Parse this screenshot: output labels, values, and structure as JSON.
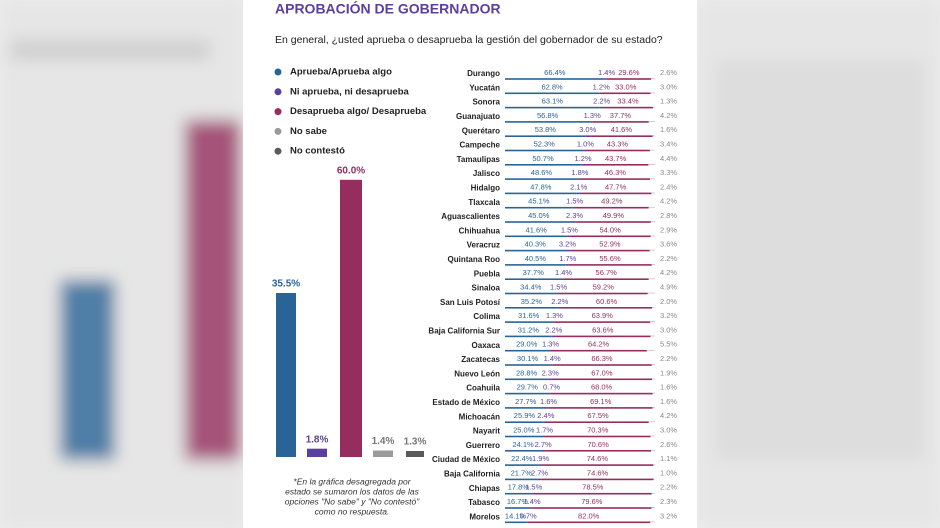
{
  "chart_data": [
    {
      "type": "bar",
      "title": "APROBACIÓN DE GOBERNADOR",
      "subtitle": "En general, ¿usted aprueba o desaprueba la gestión del gobernador de su estado?",
      "categories": [
        "Aprueba/Aprueba algo",
        "Ni aprueba, ni desaprueba",
        "Desaprueba algo/ Desaprueba",
        "No sabe",
        "No contestó"
      ],
      "values": [
        35.5,
        1.8,
        60.0,
        1.4,
        1.3
      ],
      "value_labels": [
        "35.5%",
        "1.8%",
        "60.0%",
        "1.4%",
        "1.3%"
      ],
      "colors": [
        "#2a6496",
        "#5b3f9e",
        "#952d5e",
        "#9a9a9a",
        "#5a5a5a"
      ],
      "note": [
        "*En la gráfica desagregada por",
        "estado se sumaron los datos de las",
        "opciones \"No sabe\" y \"No contestó\"",
        "como no respuesta."
      ]
    },
    {
      "type": "stacked_bar",
      "orientation": "horizontal",
      "categories": [
        "Durango",
        "Yucatán",
        "Sonora",
        "Guanajuato",
        "Querétaro",
        "Campeche",
        "Tamaulipas",
        "Jalisco",
        "Hidalgo",
        "Tlaxcala",
        "Aguascalientes",
        "Chihuahua",
        "Veracruz",
        "Quintana Roo",
        "Puebla",
        "Sinaloa",
        "San Luis Potosí",
        "Colima",
        "Baja California Sur",
        "Oaxaca",
        "Zacatecas",
        "Nuevo León",
        "Coahuila",
        "Estado de México",
        "Michoacán",
        "Nayarit",
        "Guerrero",
        "Ciudad de México",
        "Baja California",
        "Chiapas",
        "Tabasco",
        "Morelos"
      ],
      "series": [
        {
          "color": "#2a6496",
          "values": [
            66.4,
            62.8,
            63.1,
            56.8,
            53.8,
            52.3,
            50.7,
            48.6,
            47.8,
            45.1,
            45.0,
            41.6,
            40.3,
            40.5,
            37.7,
            34.4,
            35.2,
            31.6,
            31.2,
            29.0,
            30.1,
            28.8,
            29.7,
            27.7,
            25.9,
            25.0,
            24.1,
            22.4,
            21.7,
            17.8,
            16.7,
            14.1
          ],
          "value_labels": [
            "66.4%",
            "62.8%",
            "63.1%",
            "56.8%",
            "53.8%",
            "52.3%",
            "50.7%",
            "48.6%",
            "47.8%",
            "45.1%",
            "45.0%",
            "41.6%",
            "40.3%",
            "40.5%",
            "37.7%",
            "34.4%",
            "35.2%",
            "31.6%",
            "31.2%",
            "29.0%",
            "30.1%",
            "28.8%",
            "29.7%",
            "27.7%",
            "25.9%",
            "25.0%",
            "24.1%",
            "22.4%",
            "21.7%",
            "17.8%",
            "16.7%",
            "14.1%"
          ]
        },
        {
          "color": "#5b3f9e",
          "values": [
            1.4,
            1.2,
            2.2,
            1.3,
            3.0,
            1.0,
            1.2,
            1.8,
            2.1,
            1.5,
            2.3,
            1.5,
            3.2,
            1.7,
            1.4,
            1.5,
            2.2,
            1.3,
            2.2,
            1.3,
            1.4,
            2.3,
            0.7,
            1.6,
            2.4,
            1.7,
            2.7,
            1.9,
            2.7,
            1.5,
            1.4,
            0.7
          ],
          "value_labels": [
            "1.4%",
            "1.2%",
            "2.2%",
            "1.3%",
            "3.0%",
            "1.0%",
            "1.2%",
            "1.8%",
            "2.1%",
            "1.5%",
            "2.3%",
            "1.5%",
            "3.2%",
            "1.7%",
            "1.4%",
            "1.5%",
            "2.2%",
            "1.3%",
            "2.2%",
            "1.3%",
            "1.4%",
            "2.3%",
            "0.7%",
            "1.6%",
            "2.4%",
            "1.7%",
            "2.7%",
            "1.9%",
            "2.7%",
            "1.5%",
            "1.4%",
            "0.7%"
          ]
        },
        {
          "color": "#952d5e",
          "values": [
            29.6,
            33.0,
            33.4,
            37.7,
            41.6,
            43.3,
            43.7,
            46.3,
            47.7,
            49.2,
            49.9,
            54.0,
            52.9,
            55.6,
            56.7,
            59.2,
            60.6,
            63.9,
            63.6,
            64.2,
            66.3,
            67.0,
            68.0,
            69.1,
            67.5,
            70.3,
            70.6,
            74.6,
            74.6,
            78.5,
            79.6,
            82.0
          ],
          "value_labels": [
            "29.6%",
            "33.0%",
            "33.4%",
            "37.7%",
            "41.6%",
            "43.3%",
            "43.7%",
            "46.3%",
            "47.7%",
            "49.2%",
            "49.9%",
            "54.0%",
            "52.9%",
            "55.6%",
            "56.7%",
            "59.2%",
            "60.6%",
            "63.9%",
            "63.6%",
            "64.2%",
            "66.3%",
            "67.0%",
            "68.0%",
            "69.1%",
            "67.5%",
            "70.3%",
            "70.6%",
            "74.6%",
            "74.6%",
            "78.5%",
            "79.6%",
            "82.0%"
          ]
        },
        {
          "color": "#8a8a8a",
          "values": [
            2.6,
            3.0,
            1.3,
            4.2,
            1.6,
            3.4,
            4.4,
            3.3,
            2.4,
            4.2,
            2.8,
            2.9,
            3.6,
            2.2,
            4.2,
            4.9,
            2.0,
            3.2,
            3.0,
            5.5,
            2.2,
            1.9,
            1.6,
            1.6,
            4.2,
            3.0,
            2.6,
            1.1,
            1.0,
            2.2,
            2.3,
            3.2
          ],
          "value_labels": [
            "2.6%",
            "3.0%",
            "1.3%",
            "4.2%",
            "1.6%",
            "3.4%",
            "4.4%",
            "3.3%",
            "2.4%",
            "4.2%",
            "2.8%",
            "2.9%",
            "3.6%",
            "2.2%",
            "4.2%",
            "4.9%",
            "2.0%",
            "3.2%",
            "3.0%",
            "5.5%",
            "2.2%",
            "1.9%",
            "1.6%",
            "1.6%",
            "4.2%",
            "3.0%",
            "2.6%",
            "1.1%",
            "1.0%",
            "2.2%",
            "2.3%",
            "3.2%"
          ]
        }
      ]
    }
  ]
}
